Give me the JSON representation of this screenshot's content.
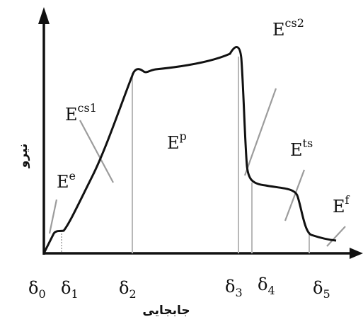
{
  "axes": {
    "y_label": "نیرو",
    "x_label": "جابجایی"
  },
  "region_labels": {
    "e": {
      "base": "E",
      "sup": "e"
    },
    "cs1": {
      "base": "E",
      "sup": "cs1"
    },
    "p": {
      "base": "E",
      "sup": "p"
    },
    "cs2": {
      "base": "E",
      "sup": "cs2"
    },
    "ts": {
      "base": "E",
      "sup": "ts"
    },
    "f": {
      "base": "E",
      "sup": "f"
    }
  },
  "deltas": [
    {
      "base": "δ",
      "sub": "0"
    },
    {
      "base": "δ",
      "sub": "1"
    },
    {
      "base": "δ",
      "sub": "2"
    },
    {
      "base": "δ",
      "sub": "3"
    },
    {
      "base": "δ",
      "sub": "4"
    },
    {
      "base": "δ",
      "sub": "5"
    }
  ],
  "colors": {
    "curve": "#111111",
    "axis": "#111111",
    "guide": "#b8b8b8"
  }
}
